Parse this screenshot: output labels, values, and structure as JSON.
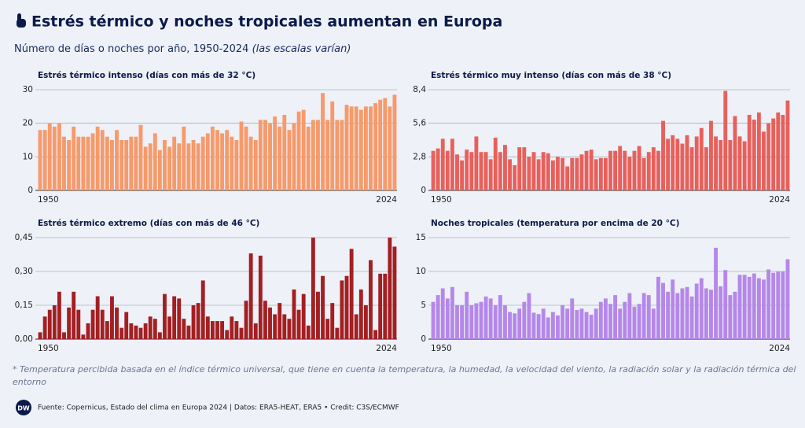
{
  "header": {
    "title": "Estrés térmico y noches tropicales aumentan en Europa",
    "subtitle": "Número de días o noches por año, 1950-2024",
    "subtitle_note": "(las escalas varían)"
  },
  "footnote": "* Temperatura percibida basada en el índice térmico universal, que tiene en cuenta la temperatura, la humedad, la velocidad del viento, la radiación solar y la radiación térmica del entorno",
  "logo": "DW",
  "source": "Fuente: Copernicus, Estado del clima en Europa 2024 | Datos: ERA5-HEAT, ERA5 • Credit: C3S/ECMWF",
  "chart_data": [
    {
      "type": "bar",
      "title": "Estrés térmico intenso (días con más de 32 °C)",
      "color": "#f79a6b",
      "grid": true,
      "categories": [
        "1950",
        null,
        null,
        null,
        null,
        null,
        null,
        null,
        null,
        null,
        null,
        null,
        null,
        null,
        null,
        null,
        null,
        null,
        null,
        null,
        null,
        null,
        null,
        null,
        null,
        null,
        null,
        null,
        null,
        null,
        null,
        null,
        null,
        null,
        null,
        null,
        null,
        null,
        null,
        null,
        null,
        null,
        null,
        null,
        null,
        null,
        null,
        null,
        null,
        null,
        null,
        null,
        null,
        null,
        null,
        null,
        null,
        null,
        null,
        null,
        null,
        null,
        null,
        null,
        null,
        null,
        null,
        null,
        null,
        null,
        null,
        null,
        null,
        null,
        "2024"
      ],
      "values": [
        18,
        18,
        20,
        19,
        20,
        16,
        15,
        19,
        16,
        16,
        16,
        17,
        19,
        18,
        16,
        15,
        18,
        15,
        15,
        16,
        16,
        19.5,
        13,
        14,
        17,
        12,
        15,
        13,
        16,
        14,
        19,
        14,
        15,
        14,
        16,
        17,
        19,
        18,
        17,
        18,
        16,
        15,
        20.5,
        19,
        16,
        15,
        21,
        21,
        20,
        22,
        19,
        22.5,
        18,
        20,
        23.5,
        24,
        19,
        21,
        21,
        29,
        21,
        26.5,
        21,
        21,
        25.5,
        25,
        25,
        24,
        25,
        25,
        26,
        27,
        27.5,
        25,
        28.5
      ],
      "ylim": [
        0,
        30
      ],
      "yticks": [
        0,
        10,
        20,
        30
      ]
    },
    {
      "type": "bar",
      "title": "Estrés térmico muy intenso (días con más de 38 °C)",
      "color": "#e8605b",
      "grid": true,
      "categories": [
        "1950",
        null,
        null,
        null,
        null,
        null,
        null,
        null,
        null,
        null,
        null,
        null,
        null,
        null,
        null,
        null,
        null,
        null,
        null,
        null,
        null,
        null,
        null,
        null,
        null,
        null,
        null,
        null,
        null,
        null,
        null,
        null,
        null,
        null,
        null,
        null,
        null,
        null,
        null,
        null,
        null,
        null,
        null,
        null,
        null,
        null,
        null,
        null,
        null,
        null,
        null,
        null,
        null,
        null,
        null,
        null,
        null,
        null,
        null,
        null,
        null,
        null,
        null,
        null,
        null,
        null,
        null,
        null,
        null,
        null,
        null,
        null,
        null,
        null,
        "2024"
      ],
      "values": [
        3.3,
        3.5,
        4.3,
        3.3,
        4.3,
        3.0,
        2.5,
        3.4,
        3.2,
        4.5,
        3.2,
        3.2,
        2.6,
        4.4,
        3.2,
        3.8,
        2.6,
        2.1,
        3.6,
        3.6,
        2.8,
        3.2,
        2.6,
        3.2,
        3.1,
        2.5,
        2.8,
        2.7,
        2.0,
        2.7,
        2.7,
        3.0,
        3.3,
        3.4,
        2.6,
        2.7,
        2.7,
        3.3,
        3.3,
        3.7,
        3.3,
        2.8,
        3.3,
        3.7,
        2.7,
        3.2,
        3.6,
        3.3,
        5.8,
        4.3,
        4.6,
        4.3,
        3.9,
        4.6,
        3.6,
        4.5,
        5.2,
        3.6,
        5.8,
        4.5,
        4.2,
        8.3,
        4.2,
        6.2,
        4.5,
        4.1,
        6.3,
        5.9,
        6.5,
        4.9,
        5.6,
        6.0,
        6.5,
        6.3,
        7.5
      ],
      "ylim": [
        0,
        8.4
      ],
      "yticks": [
        0,
        {
          "value": 2.8,
          "label": "2,8"
        },
        {
          "value": 5.6,
          "label": "5,6"
        },
        {
          "value": 8.4,
          "label": "8,4"
        }
      ]
    },
    {
      "type": "bar",
      "title": "Estrés térmico extremo (días con más de 46 °C)",
      "color": "#a31f22",
      "grid": true,
      "categories": [
        "1950",
        null,
        null,
        null,
        null,
        null,
        null,
        null,
        null,
        null,
        null,
        null,
        null,
        null,
        null,
        null,
        null,
        null,
        null,
        null,
        null,
        null,
        null,
        null,
        null,
        null,
        null,
        null,
        null,
        null,
        null,
        null,
        null,
        null,
        null,
        null,
        null,
        null,
        null,
        null,
        null,
        null,
        null,
        null,
        null,
        null,
        null,
        null,
        null,
        null,
        null,
        null,
        null,
        null,
        null,
        null,
        null,
        null,
        null,
        null,
        null,
        null,
        null,
        null,
        null,
        null,
        null,
        null,
        null,
        null,
        null,
        null,
        null,
        null,
        "2024"
      ],
      "values": [
        0.03,
        0.1,
        0.13,
        0.15,
        0.21,
        0.03,
        0.14,
        0.21,
        0.13,
        0.02,
        0.07,
        0.13,
        0.19,
        0.13,
        0.08,
        0.19,
        0.14,
        0.05,
        0.12,
        0.07,
        0.06,
        0.05,
        0.07,
        0.1,
        0.09,
        0.03,
        0.2,
        0.1,
        0.19,
        0.18,
        0.09,
        0.06,
        0.15,
        0.16,
        0.26,
        0.1,
        0.08,
        0.08,
        0.08,
        0.04,
        0.1,
        0.08,
        0.05,
        0.17,
        0.38,
        0.07,
        0.37,
        0.17,
        0.14,
        0.11,
        0.16,
        0.11,
        0.09,
        0.22,
        0.13,
        0.2,
        0.06,
        0.45,
        0.21,
        0.28,
        0.09,
        0.16,
        0.05,
        0.26,
        0.28,
        0.4,
        0.11,
        0.22,
        0.15,
        0.35,
        0.04,
        0.29,
        0.29,
        0.45,
        0.41
      ],
      "ylim": [
        0,
        0.45
      ],
      "yticks": [
        {
          "value": 0,
          "label": "0,00"
        },
        {
          "value": 0.15,
          "label": "0,15"
        },
        {
          "value": 0.3,
          "label": "0,30"
        },
        {
          "value": 0.45,
          "label": "0,45"
        }
      ]
    },
    {
      "type": "bar",
      "title": "Noches tropicales (temperatura por encima de 20 °C)",
      "color": "#b587ea",
      "grid": true,
      "categories": [
        "1950",
        null,
        null,
        null,
        null,
        null,
        null,
        null,
        null,
        null,
        null,
        null,
        null,
        null,
        null,
        null,
        null,
        null,
        null,
        null,
        null,
        null,
        null,
        null,
        null,
        null,
        null,
        null,
        null,
        null,
        null,
        null,
        null,
        null,
        null,
        null,
        null,
        null,
        null,
        null,
        null,
        null,
        null,
        null,
        null,
        null,
        null,
        null,
        null,
        null,
        null,
        null,
        null,
        null,
        null,
        null,
        null,
        null,
        null,
        null,
        null,
        null,
        null,
        null,
        null,
        null,
        null,
        null,
        null,
        null,
        null,
        null,
        null,
        null,
        "2024"
      ],
      "values": [
        5.5,
        6.5,
        7.5,
        6,
        7.7,
        5,
        5,
        7,
        5,
        5.3,
        5.5,
        6.3,
        6,
        5,
        6.5,
        5,
        4,
        3.8,
        4.5,
        5.5,
        6.8,
        3.9,
        3.7,
        4.5,
        3.2,
        4,
        3.5,
        5,
        4.5,
        6,
        4.3,
        4.5,
        4,
        3.6,
        4.5,
        5.5,
        6,
        5.2,
        6.5,
        4.5,
        5.5,
        6.8,
        4.8,
        5.2,
        6.8,
        6.5,
        4.5,
        9.2,
        8.3,
        7,
        8.8,
        6.8,
        7.5,
        7.7,
        6.3,
        8.2,
        9,
        7.5,
        7.3,
        13.5,
        7.8,
        10.2,
        6.5,
        7,
        9.5,
        9.5,
        9.2,
        9.7,
        9,
        8.8,
        10.3,
        9.8,
        10,
        10,
        11.8
      ],
      "ylim": [
        0,
        15
      ],
      "yticks": [
        0,
        5,
        10,
        15
      ]
    }
  ]
}
